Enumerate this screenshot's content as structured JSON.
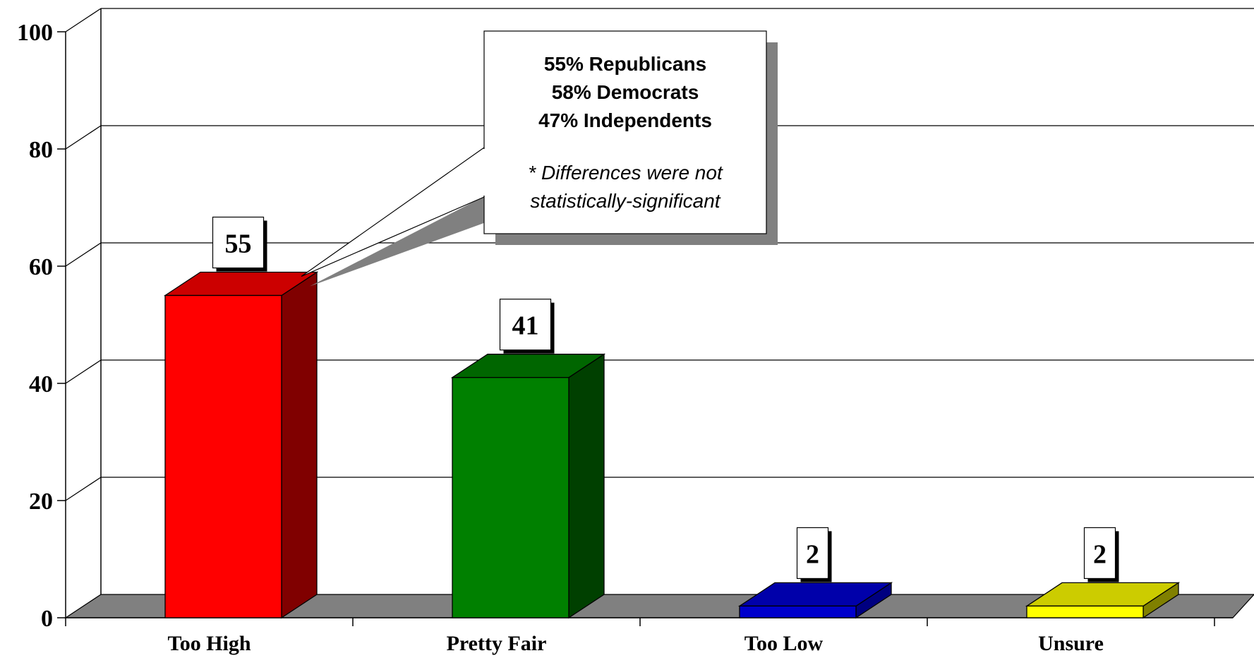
{
  "chart_data": {
    "type": "bar",
    "categories": [
      "Too High",
      "Pretty Fair",
      "Too Low",
      "Unsure"
    ],
    "values": [
      55,
      41,
      2,
      2
    ],
    "ylim": [
      0,
      100
    ],
    "yticks": [
      0,
      20,
      40,
      60,
      80,
      100
    ],
    "grid": true,
    "style": "3d",
    "colors": {
      "front": [
        "#ff0000",
        "#008000",
        "#0000cc",
        "#ffff00"
      ],
      "side": [
        "#800000",
        "#004000",
        "#000080",
        "#808000"
      ],
      "top": [
        "#cc0000",
        "#006600",
        "#0000aa",
        "#cccc00"
      ],
      "floor": "#808080",
      "callout_shadow": "#808080"
    },
    "callout": {
      "lines": [
        "55% Republicans",
        "58% Democrats",
        "47% Independents"
      ],
      "note": [
        "* Differences were not",
        "statistically-significant"
      ]
    }
  }
}
